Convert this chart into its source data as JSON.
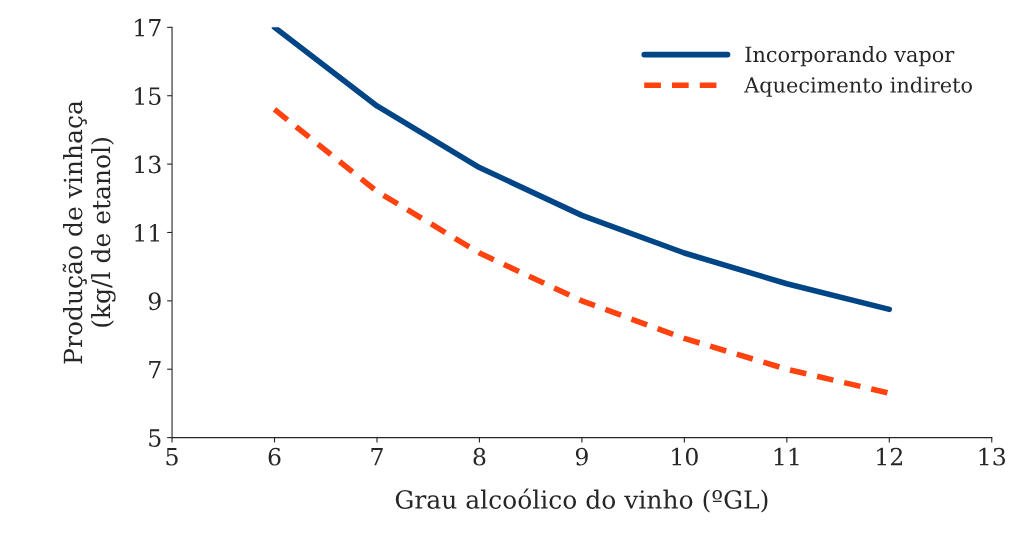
{
  "chart_data": {
    "type": "line",
    "xlabel": "Grau alcoólico do vinho (ºGL)",
    "ylabel": "Produção de vinhaça\n(kg/l de etanol)",
    "x": [
      6,
      7,
      8,
      9,
      10,
      11,
      12
    ],
    "series": [
      {
        "name": "Incorporando vapor",
        "color": "#004586",
        "line_style": "solid",
        "values": [
          17.0,
          14.7,
          12.9,
          11.5,
          10.4,
          9.5,
          8.75
        ]
      },
      {
        "name": "Aquecimento indireto",
        "color": "#ff420e",
        "line_style": "dashed",
        "values": [
          14.6,
          12.2,
          10.4,
          9.0,
          7.9,
          7.0,
          6.3
        ]
      }
    ],
    "xlim": [
      5,
      13
    ],
    "xticks": [
      5,
      6,
      7,
      8,
      9,
      10,
      11,
      12,
      13
    ],
    "ylim": [
      5,
      17
    ],
    "yticks": [
      5,
      7,
      9,
      11,
      13,
      15,
      17
    ],
    "grid": false,
    "legend": "top right",
    "marker": "none"
  }
}
